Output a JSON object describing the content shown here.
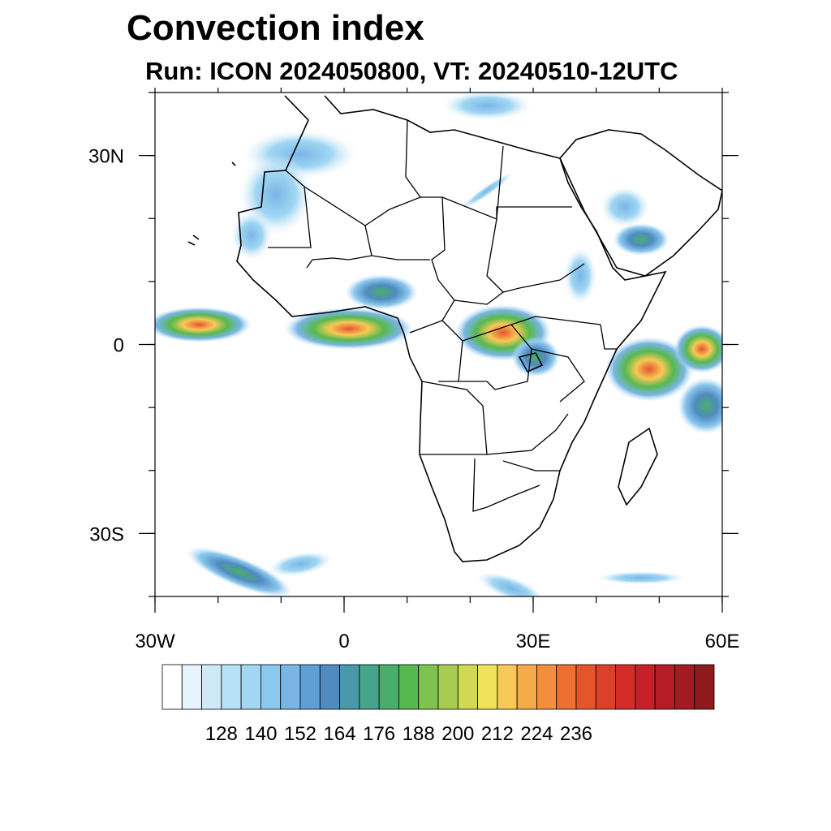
{
  "title": "Convection index",
  "subtitle": "Run: ICON 2024050800,  VT: 20240510-12UTC",
  "map": {
    "lon_range": [
      -30,
      60
    ],
    "lat_range": [
      -40,
      40
    ],
    "x_ticks": [
      {
        "lon": -30,
        "label": "30W"
      },
      {
        "lon": 0,
        "label": "0"
      },
      {
        "lon": 30,
        "label": "30E"
      },
      {
        "lon": 60,
        "label": "60E"
      }
    ],
    "y_ticks": [
      {
        "lat": 30,
        "label": "30N"
      },
      {
        "lat": 0,
        "label": "0"
      },
      {
        "lat": -30,
        "label": "30S"
      }
    ],
    "minor_lon_step": 10,
    "minor_lat_step": 10
  },
  "colorbar": {
    "labels": [
      "128",
      "140",
      "152",
      "164",
      "176",
      "188",
      "200",
      "212",
      "224",
      "236"
    ],
    "colors": [
      "#ffffff",
      "#e7f4fb",
      "#cfe9f8",
      "#b7e1f6",
      "#a1d7f3",
      "#8cc8ee",
      "#79b6e6",
      "#5f9fd6",
      "#4f8bbf",
      "#4a98a8",
      "#45a48a",
      "#4aae6a",
      "#56b84f",
      "#7fc24f",
      "#a8cc52",
      "#d1d852",
      "#f0e25a",
      "#f7c956",
      "#f6ab4a",
      "#f38e3c",
      "#ee6f31",
      "#e6542c",
      "#de3f2a",
      "#d52b29",
      "#c62028",
      "#b51c25",
      "#a31a22",
      "#8f1a1d"
    ]
  }
}
